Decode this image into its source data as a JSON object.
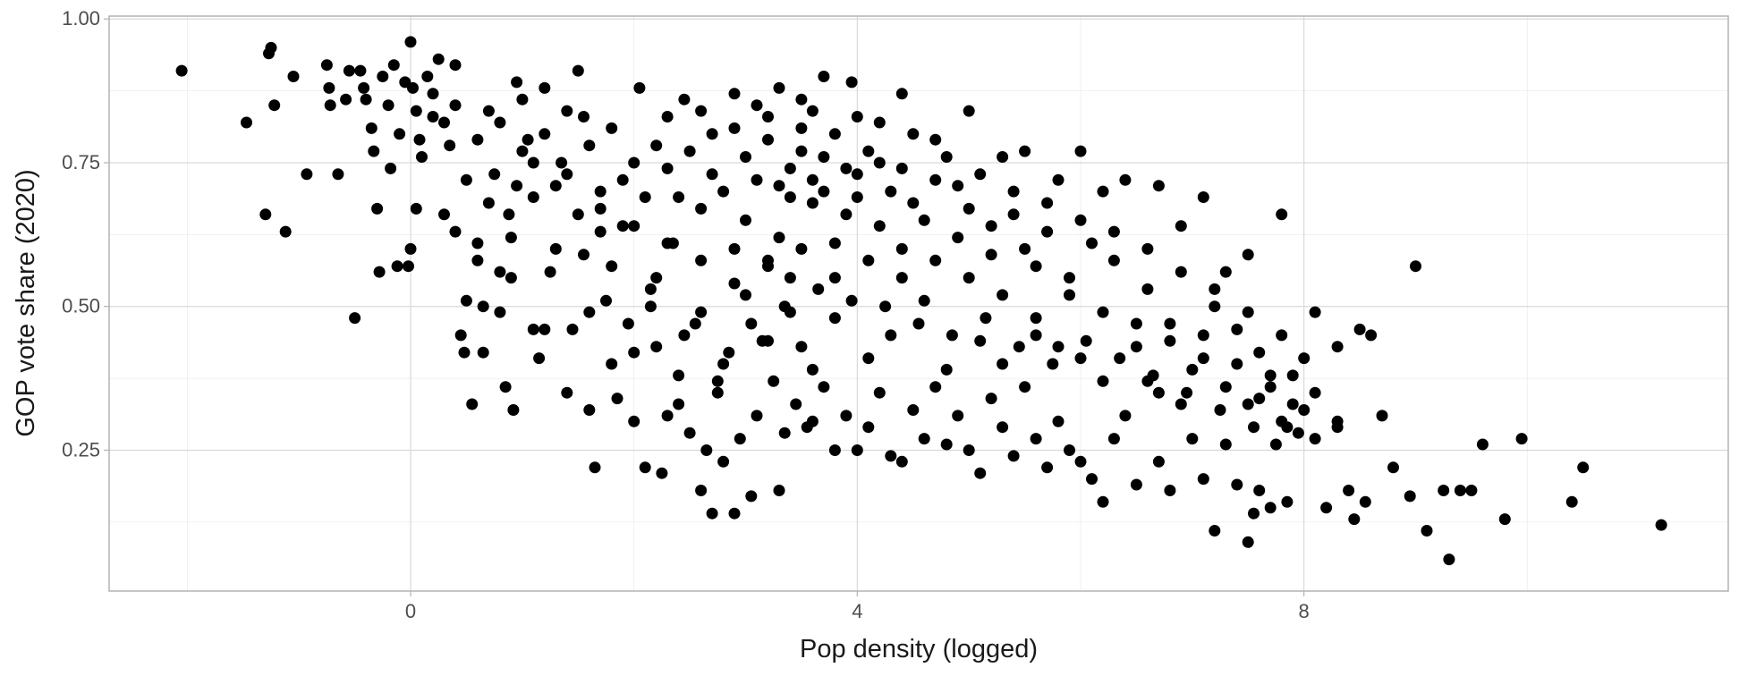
{
  "chart_data": {
    "type": "scatter",
    "title": "",
    "xlabel": "Pop density (logged)",
    "ylabel": "GOP vote share (2020)",
    "xlim": [
      -2.7,
      11.8
    ],
    "ylim": [
      0.005,
      1.005
    ],
    "x_ticks": [
      0,
      4,
      8
    ],
    "x_tick_labels": [
      "0",
      "4",
      "8"
    ],
    "y_ticks": [
      0.25,
      0.5,
      0.75,
      1.0
    ],
    "y_tick_labels": [
      "0.25",
      "0.50",
      "0.75",
      "1.00"
    ],
    "grid": true,
    "point_color": "#000000",
    "points": [
      [
        -2.05,
        0.91
      ],
      [
        -1.47,
        0.82
      ],
      [
        -1.27,
        0.94
      ],
      [
        -1.25,
        0.95
      ],
      [
        -1.22,
        0.85
      ],
      [
        -1.05,
        0.9
      ],
      [
        -0.93,
        0.73
      ],
      [
        -0.75,
        0.92
      ],
      [
        -0.73,
        0.88
      ],
      [
        -0.72,
        0.85
      ],
      [
        -0.65,
        0.73
      ],
      [
        -0.58,
        0.86
      ],
      [
        -0.55,
        0.91
      ],
      [
        -0.5,
        0.48
      ],
      [
        -0.45,
        0.91
      ],
      [
        -0.42,
        0.88
      ],
      [
        -0.4,
        0.86
      ],
      [
        -0.35,
        0.81
      ],
      [
        -0.33,
        0.77
      ],
      [
        -0.3,
        0.67
      ],
      [
        -0.28,
        0.56
      ],
      [
        -0.25,
        0.9
      ],
      [
        -0.2,
        0.85
      ],
      [
        -0.18,
        0.74
      ],
      [
        -0.15,
        0.92
      ],
      [
        -0.12,
        0.57
      ],
      [
        -0.1,
        0.8
      ],
      [
        -0.05,
        0.89
      ],
      [
        0.0,
        0.96
      ],
      [
        0.02,
        0.88
      ],
      [
        0.05,
        0.84
      ],
      [
        0.08,
        0.79
      ],
      [
        0.1,
        0.76
      ],
      [
        0.15,
        0.9
      ],
      [
        0.2,
        0.87
      ],
      [
        0.25,
        0.93
      ],
      [
        0.3,
        0.82
      ],
      [
        0.35,
        0.78
      ],
      [
        0.4,
        0.92
      ],
      [
        0.45,
        0.45
      ],
      [
        0.48,
        0.42
      ],
      [
        0.5,
        0.51
      ],
      [
        0.55,
        0.33
      ],
      [
        0.6,
        0.58
      ],
      [
        0.65,
        0.5
      ],
      [
        0.7,
        0.84
      ],
      [
        0.75,
        0.73
      ],
      [
        0.8,
        0.49
      ],
      [
        0.85,
        0.36
      ],
      [
        0.88,
        0.66
      ],
      [
        0.92,
        0.32
      ],
      [
        0.95,
        0.89
      ],
      [
        1.0,
        0.86
      ],
      [
        1.05,
        0.79
      ],
      [
        1.1,
        0.46
      ],
      [
        1.15,
        0.41
      ],
      [
        1.2,
        0.88
      ],
      [
        1.25,
        0.56
      ],
      [
        1.3,
        0.6
      ],
      [
        1.35,
        0.75
      ],
      [
        1.4,
        0.35
      ],
      [
        1.45,
        0.46
      ],
      [
        1.5,
        0.91
      ],
      [
        1.55,
        0.83
      ],
      [
        1.6,
        0.32
      ],
      [
        1.65,
        0.22
      ],
      [
        1.7,
        0.67
      ],
      [
        1.75,
        0.51
      ],
      [
        1.8,
        0.4
      ],
      [
        1.85,
        0.34
      ],
      [
        1.9,
        0.64
      ],
      [
        1.95,
        0.47
      ],
      [
        2.0,
        0.3
      ],
      [
        2.05,
        0.88
      ],
      [
        2.1,
        0.22
      ],
      [
        2.15,
        0.53
      ],
      [
        2.2,
        0.43
      ],
      [
        2.25,
        0.21
      ],
      [
        2.3,
        0.31
      ],
      [
        2.35,
        0.61
      ],
      [
        2.4,
        0.38
      ],
      [
        2.45,
        0.86
      ],
      [
        2.5,
        0.28
      ],
      [
        2.55,
        0.47
      ],
      [
        2.6,
        0.18
      ],
      [
        2.65,
        0.25
      ],
      [
        2.7,
        0.14
      ],
      [
        2.75,
        0.35
      ],
      [
        2.8,
        0.23
      ],
      [
        2.85,
        0.42
      ],
      [
        2.9,
        0.14
      ],
      [
        2.95,
        0.27
      ],
      [
        3.0,
        0.52
      ],
      [
        3.05,
        0.17
      ],
      [
        3.1,
        0.31
      ],
      [
        3.15,
        0.44
      ],
      [
        3.2,
        0.58
      ],
      [
        3.25,
        0.37
      ],
      [
        3.3,
        0.18
      ],
      [
        3.35,
        0.28
      ],
      [
        3.4,
        0.49
      ],
      [
        3.45,
        0.33
      ],
      [
        3.5,
        0.43
      ],
      [
        3.55,
        0.29
      ],
      [
        3.6,
        0.3
      ],
      [
        3.7,
        0.36
      ],
      [
        3.8,
        0.25
      ],
      [
        3.9,
        0.31
      ],
      [
        4.0,
        0.25
      ],
      [
        4.1,
        0.29
      ],
      [
        4.2,
        0.35
      ],
      [
        4.3,
        0.24
      ],
      [
        4.4,
        0.23
      ],
      [
        4.5,
        0.32
      ],
      [
        4.6,
        0.27
      ],
      [
        4.7,
        0.36
      ],
      [
        4.8,
        0.26
      ],
      [
        4.9,
        0.31
      ],
      [
        5.0,
        0.25
      ],
      [
        5.1,
        0.21
      ],
      [
        5.2,
        0.34
      ],
      [
        5.3,
        0.29
      ],
      [
        5.4,
        0.24
      ],
      [
        5.5,
        0.36
      ],
      [
        5.6,
        0.27
      ],
      [
        5.7,
        0.22
      ],
      [
        5.8,
        0.3
      ],
      [
        5.9,
        0.25
      ],
      [
        6.0,
        0.23
      ],
      [
        6.1,
        0.2
      ],
      [
        6.2,
        0.16
      ],
      [
        6.3,
        0.27
      ],
      [
        6.4,
        0.31
      ],
      [
        6.5,
        0.19
      ],
      [
        6.6,
        0.37
      ],
      [
        6.7,
        0.23
      ],
      [
        6.8,
        0.18
      ],
      [
        6.9,
        0.33
      ],
      [
        7.0,
        0.27
      ],
      [
        7.1,
        0.2
      ],
      [
        7.2,
        0.11
      ],
      [
        7.3,
        0.26
      ],
      [
        7.4,
        0.19
      ],
      [
        7.5,
        0.09
      ],
      [
        7.55,
        0.14
      ],
      [
        7.6,
        0.18
      ],
      [
        7.7,
        0.15
      ],
      [
        7.75,
        0.26
      ],
      [
        7.8,
        0.3
      ],
      [
        7.85,
        0.16
      ],
      [
        7.9,
        0.33
      ],
      [
        8.0,
        0.32
      ],
      [
        8.1,
        0.27
      ],
      [
        8.2,
        0.15
      ],
      [
        8.3,
        0.29
      ],
      [
        8.4,
        0.18
      ],
      [
        8.45,
        0.13
      ],
      [
        8.55,
        0.16
      ],
      [
        8.6,
        0.45
      ],
      [
        8.7,
        0.31
      ],
      [
        8.8,
        0.22
      ],
      [
        8.95,
        0.17
      ],
      [
        9.0,
        0.57
      ],
      [
        9.1,
        0.11
      ],
      [
        9.25,
        0.18
      ],
      [
        9.3,
        0.06
      ],
      [
        9.4,
        0.18
      ],
      [
        9.5,
        0.18
      ],
      [
        9.6,
        0.26
      ],
      [
        9.8,
        0.13
      ],
      [
        9.95,
        0.27
      ],
      [
        10.4,
        0.16
      ],
      [
        10.5,
        0.22
      ],
      [
        11.2,
        0.12
      ],
      [
        5.0,
        0.84
      ],
      [
        5.3,
        0.76
      ],
      [
        5.5,
        0.77
      ],
      [
        5.8,
        0.72
      ],
      [
        6.0,
        0.77
      ],
      [
        6.2,
        0.7
      ],
      [
        6.4,
        0.72
      ],
      [
        6.7,
        0.71
      ],
      [
        6.9,
        0.64
      ],
      [
        7.1,
        0.69
      ],
      [
        7.3,
        0.56
      ],
      [
        7.5,
        0.59
      ],
      [
        7.8,
        0.66
      ],
      [
        8.1,
        0.49
      ],
      [
        8.3,
        0.43
      ],
      [
        8.5,
        0.46
      ],
      [
        7.2,
        0.5
      ],
      [
        7.4,
        0.46
      ],
      [
        7.6,
        0.42
      ],
      [
        7.9,
        0.38
      ],
      [
        8.0,
        0.41
      ],
      [
        6.8,
        0.47
      ],
      [
        6.6,
        0.53
      ],
      [
        6.3,
        0.58
      ],
      [
        6.1,
        0.61
      ],
      [
        5.9,
        0.55
      ],
      [
        5.7,
        0.63
      ],
      [
        5.4,
        0.66
      ],
      [
        5.2,
        0.59
      ],
      [
        4.9,
        0.71
      ],
      [
        4.7,
        0.79
      ],
      [
        4.4,
        0.87
      ],
      [
        4.2,
        0.82
      ],
      [
        3.95,
        0.89
      ],
      [
        3.7,
        0.9
      ],
      [
        3.5,
        0.86
      ],
      [
        3.3,
        0.88
      ],
      [
        3.1,
        0.85
      ],
      [
        2.9,
        0.81
      ],
      [
        2.7,
        0.8
      ],
      [
        2.5,
        0.77
      ],
      [
        2.3,
        0.74
      ],
      [
        2.1,
        0.69
      ],
      [
        1.9,
        0.72
      ],
      [
        1.7,
        0.63
      ],
      [
        1.5,
        0.66
      ],
      [
        1.3,
        0.71
      ],
      [
        1.1,
        0.69
      ],
      [
        0.9,
        0.62
      ],
      [
        0.7,
        0.68
      ],
      [
        0.5,
        0.72
      ],
      [
        0.3,
        0.66
      ],
      [
        -1.3,
        0.66
      ],
      [
        -1.12,
        0.63
      ],
      [
        0.05,
        0.67
      ],
      [
        0.0,
        0.6
      ],
      [
        -0.02,
        0.57
      ],
      [
        0.4,
        0.63
      ],
      [
        0.65,
        0.42
      ],
      [
        0.9,
        0.55
      ],
      [
        1.8,
        0.57
      ],
      [
        2.2,
        0.55
      ],
      [
        2.6,
        0.49
      ],
      [
        3.4,
        0.55
      ],
      [
        3.8,
        0.48
      ],
      [
        4.3,
        0.45
      ],
      [
        4.6,
        0.51
      ],
      [
        5.1,
        0.44
      ],
      [
        5.6,
        0.48
      ],
      [
        6.0,
        0.41
      ],
      [
        6.5,
        0.43
      ],
      [
        7.0,
        0.39
      ],
      [
        7.3,
        0.36
      ],
      [
        7.6,
        0.34
      ],
      [
        7.85,
        0.29
      ],
      [
        4.8,
        0.39
      ],
      [
        4.1,
        0.41
      ],
      [
        3.6,
        0.39
      ],
      [
        3.2,
        0.44
      ],
      [
        2.8,
        0.4
      ],
      [
        2.4,
        0.33
      ],
      [
        2.0,
        0.42
      ],
      [
        1.6,
        0.49
      ],
      [
        1.2,
        0.46
      ],
      [
        0.8,
        0.56
      ],
      [
        0.6,
        0.61
      ],
      [
        5.3,
        0.4
      ],
      [
        5.8,
        0.43
      ],
      [
        6.2,
        0.37
      ],
      [
        6.7,
        0.35
      ],
      [
        7.1,
        0.41
      ],
      [
        7.5,
        0.33
      ],
      [
        7.7,
        0.38
      ],
      [
        8.1,
        0.35
      ],
      [
        8.3,
        0.3
      ],
      [
        7.95,
        0.28
      ],
      [
        2.8,
        0.7
      ],
      [
        3.1,
        0.72
      ],
      [
        3.4,
        0.74
      ],
      [
        3.7,
        0.76
      ],
      [
        4.0,
        0.73
      ],
      [
        4.3,
        0.7
      ],
      [
        3.0,
        0.65
      ],
      [
        3.6,
        0.68
      ],
      [
        3.9,
        0.66
      ],
      [
        4.2,
        0.64
      ],
      [
        4.5,
        0.68
      ],
      [
        3.3,
        0.62
      ],
      [
        3.8,
        0.61
      ],
      [
        4.4,
        0.6
      ],
      [
        2.6,
        0.67
      ],
      [
        2.9,
        0.6
      ],
      [
        3.2,
        0.79
      ],
      [
        3.5,
        0.81
      ],
      [
        3.8,
        0.8
      ],
      [
        4.1,
        0.77
      ],
      [
        4.4,
        0.74
      ],
      [
        4.7,
        0.72
      ],
      [
        3.0,
        0.76
      ],
      [
        2.7,
        0.73
      ],
      [
        3.6,
        0.72
      ],
      [
        3.4,
        0.69
      ],
      [
        3.7,
        0.7
      ],
      [
        4.0,
        0.69
      ],
      [
        4.2,
        0.75
      ],
      [
        3.5,
        0.77
      ],
      [
        3.9,
        0.74
      ],
      [
        3.3,
        0.71
      ],
      [
        4.6,
        0.65
      ],
      [
        4.9,
        0.62
      ],
      [
        5.2,
        0.64
      ],
      [
        5.5,
        0.6
      ],
      [
        5.0,
        0.67
      ],
      [
        2.4,
        0.69
      ],
      [
        2.2,
        0.78
      ],
      [
        2.0,
        0.75
      ],
      [
        1.8,
        0.81
      ],
      [
        1.6,
        0.78
      ],
      [
        1.4,
        0.84
      ],
      [
        1.2,
        0.8
      ],
      [
        1.0,
        0.77
      ],
      [
        0.8,
        0.82
      ],
      [
        0.6,
        0.79
      ],
      [
        0.4,
        0.85
      ],
      [
        0.2,
        0.83
      ],
      [
        2.3,
        0.83
      ],
      [
        2.6,
        0.84
      ],
      [
        2.9,
        0.87
      ],
      [
        3.2,
        0.83
      ],
      [
        3.6,
        0.84
      ],
      [
        4.0,
        0.83
      ],
      [
        4.5,
        0.8
      ],
      [
        4.8,
        0.76
      ],
      [
        5.1,
        0.73
      ],
      [
        5.4,
        0.7
      ],
      [
        5.7,
        0.68
      ],
      [
        6.0,
        0.65
      ],
      [
        6.3,
        0.63
      ],
      [
        6.6,
        0.6
      ],
      [
        6.9,
        0.56
      ],
      [
        7.2,
        0.53
      ],
      [
        7.5,
        0.49
      ],
      [
        7.8,
        0.45
      ],
      [
        5.6,
        0.57
      ],
      [
        5.9,
        0.52
      ],
      [
        6.2,
        0.49
      ],
      [
        6.5,
        0.47
      ],
      [
        6.8,
        0.44
      ],
      [
        7.1,
        0.45
      ],
      [
        7.4,
        0.4
      ],
      [
        7.7,
        0.36
      ],
      [
        5.0,
        0.55
      ],
      [
        5.3,
        0.52
      ],
      [
        5.6,
        0.45
      ],
      [
        4.7,
        0.58
      ],
      [
        4.4,
        0.55
      ],
      [
        4.1,
        0.58
      ],
      [
        3.8,
        0.55
      ],
      [
        3.5,
        0.6
      ],
      [
        3.2,
        0.57
      ],
      [
        2.9,
        0.54
      ],
      [
        2.6,
        0.58
      ],
      [
        2.3,
        0.61
      ],
      [
        2.0,
        0.64
      ],
      [
        1.7,
        0.7
      ],
      [
        1.4,
        0.73
      ],
      [
        1.1,
        0.75
      ],
      [
        0.95,
        0.71
      ],
      [
        1.55,
        0.59
      ],
      [
        2.15,
        0.5
      ],
      [
        2.45,
        0.45
      ],
      [
        2.75,
        0.37
      ],
      [
        3.05,
        0.47
      ],
      [
        3.35,
        0.5
      ],
      [
        3.65,
        0.53
      ],
      [
        3.95,
        0.51
      ],
      [
        4.25,
        0.5
      ],
      [
        4.55,
        0.47
      ],
      [
        4.85,
        0.45
      ],
      [
        5.15,
        0.48
      ],
      [
        5.45,
        0.43
      ],
      [
        5.75,
        0.4
      ],
      [
        6.05,
        0.44
      ],
      [
        6.35,
        0.41
      ],
      [
        6.65,
        0.38
      ],
      [
        6.95,
        0.35
      ],
      [
        7.25,
        0.32
      ],
      [
        7.55,
        0.29
      ]
    ]
  }
}
